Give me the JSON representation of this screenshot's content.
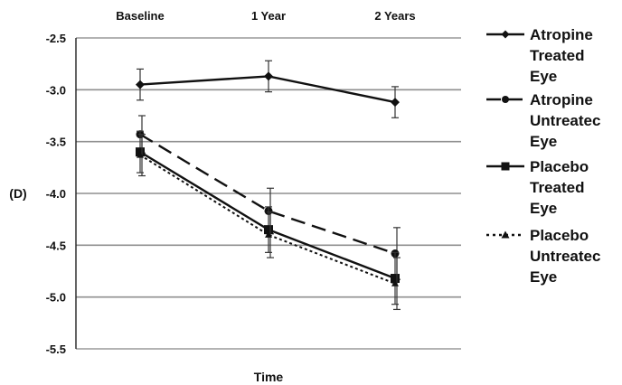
{
  "chart_data": {
    "type": "line",
    "title": "",
    "xlabel": "Time",
    "ylabel": "(D)",
    "categories": [
      "Baseline",
      "1 Year",
      "2 Years"
    ],
    "ylim": [
      -5.5,
      -2.5
    ],
    "yticks": [
      -2.5,
      -3.0,
      -3.5,
      -4.0,
      -4.5,
      -5.0,
      -5.5
    ],
    "ytick_labels": [
      "-2.5",
      "-3.0",
      "-3.5",
      "-4.0",
      "-4.5",
      "-5.0",
      "-5.5"
    ],
    "grid": "horizontal",
    "legend_position": "right",
    "series": [
      {
        "name": "Atropine Treated Eye",
        "legend_lines": [
          "Atropine",
          "Treated",
          "Eye"
        ],
        "values": [
          -2.95,
          -2.87,
          -3.12
        ],
        "errors": [
          0.15,
          0.15,
          0.15
        ],
        "line_style": "solid",
        "marker": "diamond",
        "color": "#111111"
      },
      {
        "name": "Atropine Untreated Eye",
        "legend_lines": [
          "Atropine",
          "Untreatec",
          "Eye"
        ],
        "values": [
          -3.43,
          -4.17,
          -4.58
        ],
        "errors": [
          0.18,
          0.22,
          0.25
        ],
        "line_style": "dashed",
        "marker": "circle",
        "color": "#111111"
      },
      {
        "name": "Placebo Treated Eye",
        "legend_lines": [
          "Placebo",
          "Treated",
          "Eye"
        ],
        "values": [
          -3.6,
          -4.35,
          -4.82
        ],
        "errors": [
          0.2,
          0.22,
          0.25
        ],
        "line_style": "solid",
        "marker": "square",
        "color": "#111111"
      },
      {
        "name": "Placebo Untreated Eye",
        "legend_lines": [
          "Placebo",
          "Untreatec",
          "Eye"
        ],
        "values": [
          -3.63,
          -4.4,
          -4.87
        ],
        "errors": [
          0.2,
          0.22,
          0.25
        ],
        "line_style": "dotted",
        "marker": "triangle",
        "color": "#111111"
      }
    ]
  }
}
